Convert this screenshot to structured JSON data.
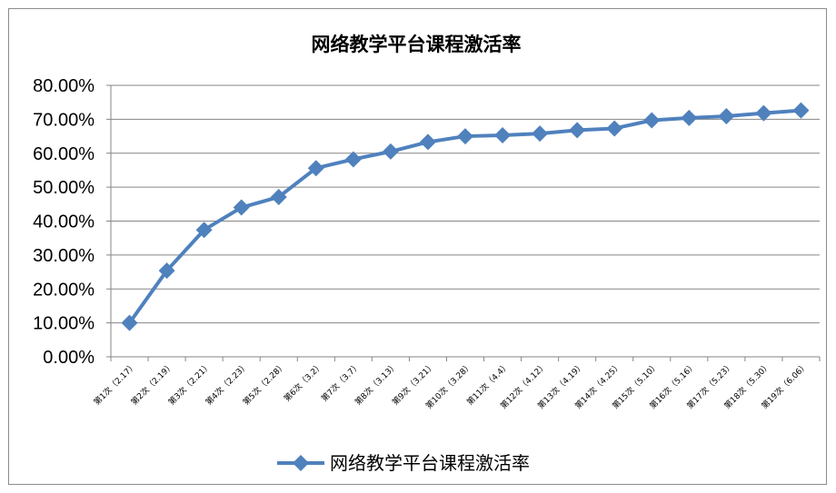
{
  "chart_data": {
    "type": "line",
    "title": "网络教学平台课程激活率",
    "xlabel": "",
    "ylabel": "",
    "ylim": [
      0,
      0.8
    ],
    "y_ticks": [
      "0.00%",
      "10.00%",
      "20.00%",
      "30.00%",
      "40.00%",
      "50.00%",
      "60.00%",
      "70.00%",
      "80.00%"
    ],
    "grid": true,
    "legend_position": "bottom",
    "categories": [
      "第1次（2.17）",
      "第2次（2.19）",
      "第3次（2.21）",
      "第4次（2.23）",
      "第5次（2.28）",
      "第6次（3.2）",
      "第7次（3.7）",
      "第8次（3.13）",
      "第9次（3.21）",
      "第10次（3.28）",
      "第11次（4.4）",
      "第12次（4.12）",
      "第13次（4.19）",
      "第14次（4.25）",
      "第15次（5.10）",
      "第16次（5.16）",
      "第17次（5.23）",
      "第18次（5.30）",
      "第19次（6.06）"
    ],
    "series": [
      {
        "name": "网络教学平台课程激活率",
        "color": "#4f81bd",
        "values": [
          0.1,
          0.254,
          0.374,
          0.44,
          0.471,
          0.556,
          0.582,
          0.605,
          0.633,
          0.65,
          0.653,
          0.658,
          0.668,
          0.673,
          0.697,
          0.704,
          0.709,
          0.718,
          0.726
        ]
      }
    ]
  }
}
